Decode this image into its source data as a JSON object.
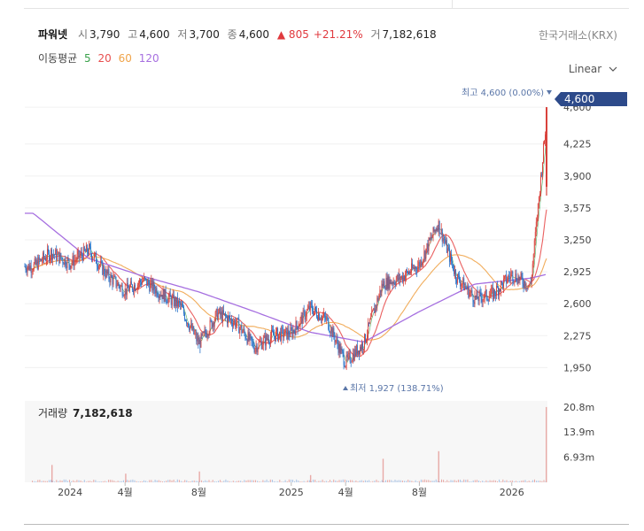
{
  "quote": {
    "name": "파워넷",
    "open_label": "시",
    "open": "3,790",
    "high_label": "고",
    "high": "4,600",
    "low_label": "저",
    "low": "3,700",
    "close_label": "종",
    "close": "4,600",
    "change": "▲ 805",
    "change_pct": "+21.21%",
    "volume_label": "거",
    "volume": "7,182,618"
  },
  "exchange": "한국거래소(KRX)",
  "scale_label": "Linear",
  "moving_averages": {
    "label": "이동평균",
    "periods": [
      {
        "name": "5",
        "color": "#3aa24b"
      },
      {
        "name": "20",
        "color": "#e84f4f"
      },
      {
        "name": "60",
        "color": "#f0a44a"
      },
      {
        "name": "120",
        "color": "#a66fe0"
      }
    ]
  },
  "chart_data": {
    "type": "candlestick",
    "ylim": [
      1800,
      4700
    ],
    "y_ticks": [
      "4,600",
      "4,225",
      "3,900",
      "3,575",
      "3,250",
      "2,925",
      "2,600",
      "2,275",
      "1,950"
    ],
    "last_price_label": "4,600",
    "max_annotation": "최고 4,600 (0.00%)",
    "min_annotation": "최저 1,927 (138.71%)",
    "x_labels": [
      "2024",
      "4월",
      "8월",
      "2025",
      "4월",
      "8월",
      "2026"
    ],
    "x_label_dates": [
      "2024-01",
      "2024-04",
      "2024-08",
      "2025-01",
      "2025-04",
      "2025-08",
      "2026-01"
    ],
    "price_anchors": [
      [
        "2023-11",
        2980
      ],
      [
        "2023-12",
        3120
      ],
      [
        "2024-01",
        3010
      ],
      [
        "2024-02",
        3150
      ],
      [
        "2024-03",
        2900
      ],
      [
        "2024-04",
        2730
      ],
      [
        "2024-05",
        2840
      ],
      [
        "2024-06",
        2700
      ],
      [
        "2024-07",
        2580
      ],
      [
        "2024-08",
        2190
      ],
      [
        "2024-09",
        2500
      ],
      [
        "2024-10",
        2410
      ],
      [
        "2024-11",
        2160
      ],
      [
        "2024-12",
        2280
      ],
      [
        "2025-01",
        2300
      ],
      [
        "2025-02",
        2560
      ],
      [
        "2025-03",
        2430
      ],
      [
        "2025-04",
        2000
      ],
      [
        "2025-05",
        2200
      ],
      [
        "2025-06",
        2800
      ],
      [
        "2025-07",
        2860
      ],
      [
        "2025-08",
        3000
      ],
      [
        "2025-09",
        3420
      ],
      [
        "2025-10",
        2880
      ],
      [
        "2025-11",
        2650
      ],
      [
        "2025-12",
        2700
      ],
      [
        "2026-01",
        2900
      ],
      [
        "2026-02",
        2780
      ],
      [
        "2026-03",
        4600
      ]
    ],
    "ma120_anchors": [
      [
        "2023-11",
        3520
      ],
      [
        "2024-02",
        3060
      ],
      [
        "2024-05",
        2880
      ],
      [
        "2024-08",
        2720
      ],
      [
        "2024-11",
        2520
      ],
      [
        "2025-02",
        2310
      ],
      [
        "2025-05",
        2210
      ],
      [
        "2025-08",
        2520
      ],
      [
        "2025-11",
        2800
      ],
      [
        "2026-02",
        2860
      ],
      [
        "2026-03",
        2900
      ]
    ],
    "volume": {
      "label": "거래량",
      "value": "7,182,618",
      "y_ticks": [
        "20.8m",
        "13.9m",
        "6.93m"
      ],
      "ylim": [
        0,
        22000000
      ],
      "spikes": [
        [
          "2023-12",
          4800000
        ],
        [
          "2024-04",
          2400000
        ],
        [
          "2024-08",
          3000000
        ],
        [
          "2025-02",
          2000000
        ],
        [
          "2025-06",
          6500000
        ],
        [
          "2025-09",
          8600000
        ],
        [
          "2026-03",
          20800000
        ]
      ]
    }
  }
}
